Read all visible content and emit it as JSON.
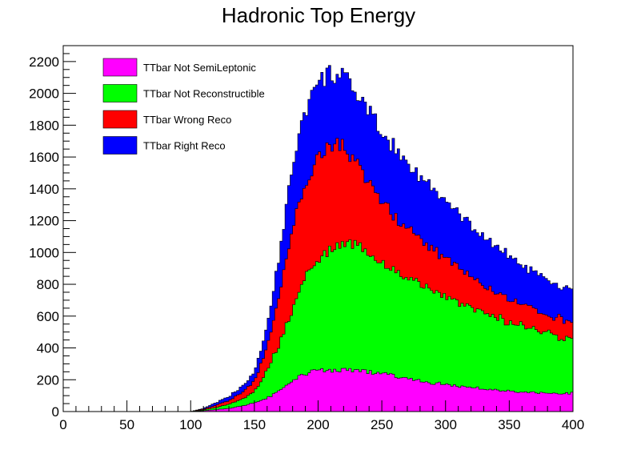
{
  "chart_data": {
    "type": "area",
    "stacked": true,
    "histogram_bin_width": 2,
    "title": "Hadronic Top Energy",
    "xlabel": "",
    "ylabel": "",
    "xlim": [
      0,
      400
    ],
    "ylim": [
      0,
      2300
    ],
    "x_ticks": [
      0,
      50,
      100,
      150,
      200,
      250,
      300,
      350,
      400
    ],
    "y_ticks": [
      0,
      200,
      400,
      600,
      800,
      1000,
      1200,
      1400,
      1600,
      1800,
      2000,
      2200
    ],
    "grid": false,
    "legend_placement": "top-left",
    "x": [
      100,
      110,
      120,
      130,
      140,
      150,
      160,
      170,
      180,
      190,
      200,
      210,
      220,
      230,
      240,
      250,
      260,
      270,
      280,
      290,
      300,
      310,
      320,
      330,
      340,
      350,
      360,
      370,
      380,
      390,
      400
    ],
    "series": [
      {
        "name": "TTbar Not SemiLeptonic",
        "color": "#ff00ff",
        "values": [
          0,
          5,
          12,
          20,
          35,
          55,
          85,
          130,
          190,
          240,
          255,
          262,
          260,
          255,
          250,
          240,
          225,
          210,
          195,
          180,
          170,
          160,
          150,
          143,
          136,
          130,
          125,
          120,
          117,
          115,
          115
        ]
      },
      {
        "name": "TTbar Not Reconstructible",
        "color": "#00ff00",
        "values": [
          0,
          10,
          25,
          45,
          75,
          120,
          260,
          430,
          640,
          850,
          960,
          1020,
          1060,
          1050,
          1000,
          940,
          890,
          845,
          800,
          760,
          720,
          680,
          650,
          620,
          590,
          560,
          540,
          510,
          490,
          470,
          450
        ]
      },
      {
        "name": "TTbar Wrong Reco",
        "color": "#ff0000",
        "values": [
          0,
          15,
          40,
          70,
          120,
          190,
          400,
          760,
          1150,
          1450,
          1600,
          1680,
          1660,
          1560,
          1440,
          1320,
          1230,
          1150,
          1080,
          1020,
          960,
          900,
          850,
          800,
          755,
          710,
          670,
          640,
          610,
          590,
          580
        ]
      },
      {
        "name": "TTbar Right Reco",
        "color": "#0000ff",
        "values": [
          0,
          20,
          55,
          95,
          160,
          250,
          540,
          1000,
          1560,
          1900,
          2060,
          2130,
          2100,
          2000,
          1880,
          1760,
          1660,
          1570,
          1480,
          1400,
          1320,
          1240,
          1170,
          1100,
          1040,
          980,
          920,
          870,
          820,
          780,
          760
        ]
      }
    ]
  }
}
